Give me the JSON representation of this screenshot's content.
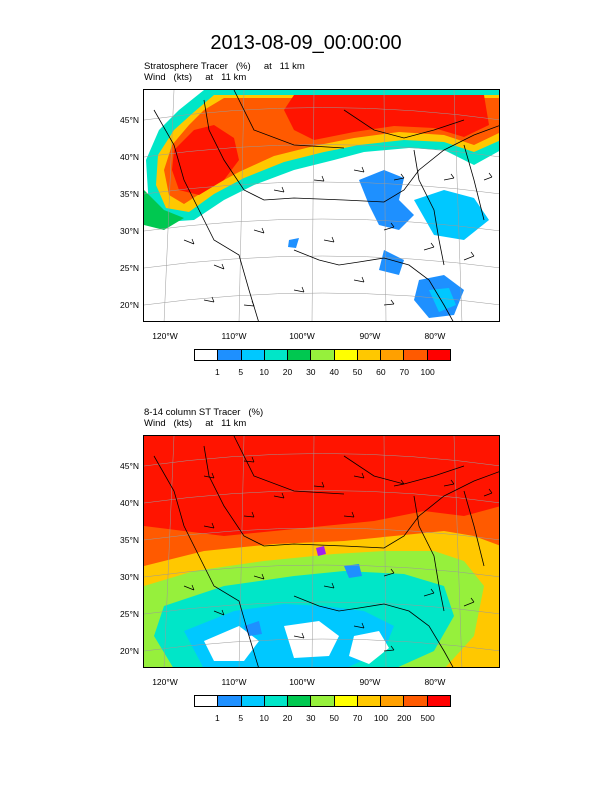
{
  "title": "2013-08-09_00:00:00",
  "panels": [
    {
      "line1": "Stratosphere Tracer   (%)     at   11 km",
      "line2": "Wind   (kts)     at   11 km",
      "lat_labels": [
        "45°N",
        "40°N",
        "35°N",
        "30°N",
        "25°N",
        "20°N"
      ],
      "lon_labels": [
        "120°W",
        "110°W",
        "100°W",
        "90°W",
        "80°W"
      ],
      "colorbar_labels": [
        "1",
        "5",
        "10",
        "20",
        "30",
        "40",
        "50",
        "60",
        "70",
        "100"
      ]
    },
    {
      "line1": "8-14 column ST Tracer   (%)",
      "line2": "Wind   (kts)     at   11 km",
      "lat_labels": [
        "45°N",
        "40°N",
        "35°N",
        "30°N",
        "25°N",
        "20°N"
      ],
      "lon_labels": [
        "120°W",
        "110°W",
        "100°W",
        "90°W",
        "80°W"
      ],
      "colorbar_labels": [
        "1",
        "5",
        "10",
        "20",
        "30",
        "50",
        "70",
        "100",
        "200",
        "500"
      ]
    }
  ],
  "colorbar_colors": [
    "#ffffff",
    "#1e90ff",
    "#00c8ff",
    "#00e6c8",
    "#00c850",
    "#96f03c",
    "#ffff00",
    "#ffc800",
    "#ffa000",
    "#ff5a00",
    "#ff0000"
  ]
}
